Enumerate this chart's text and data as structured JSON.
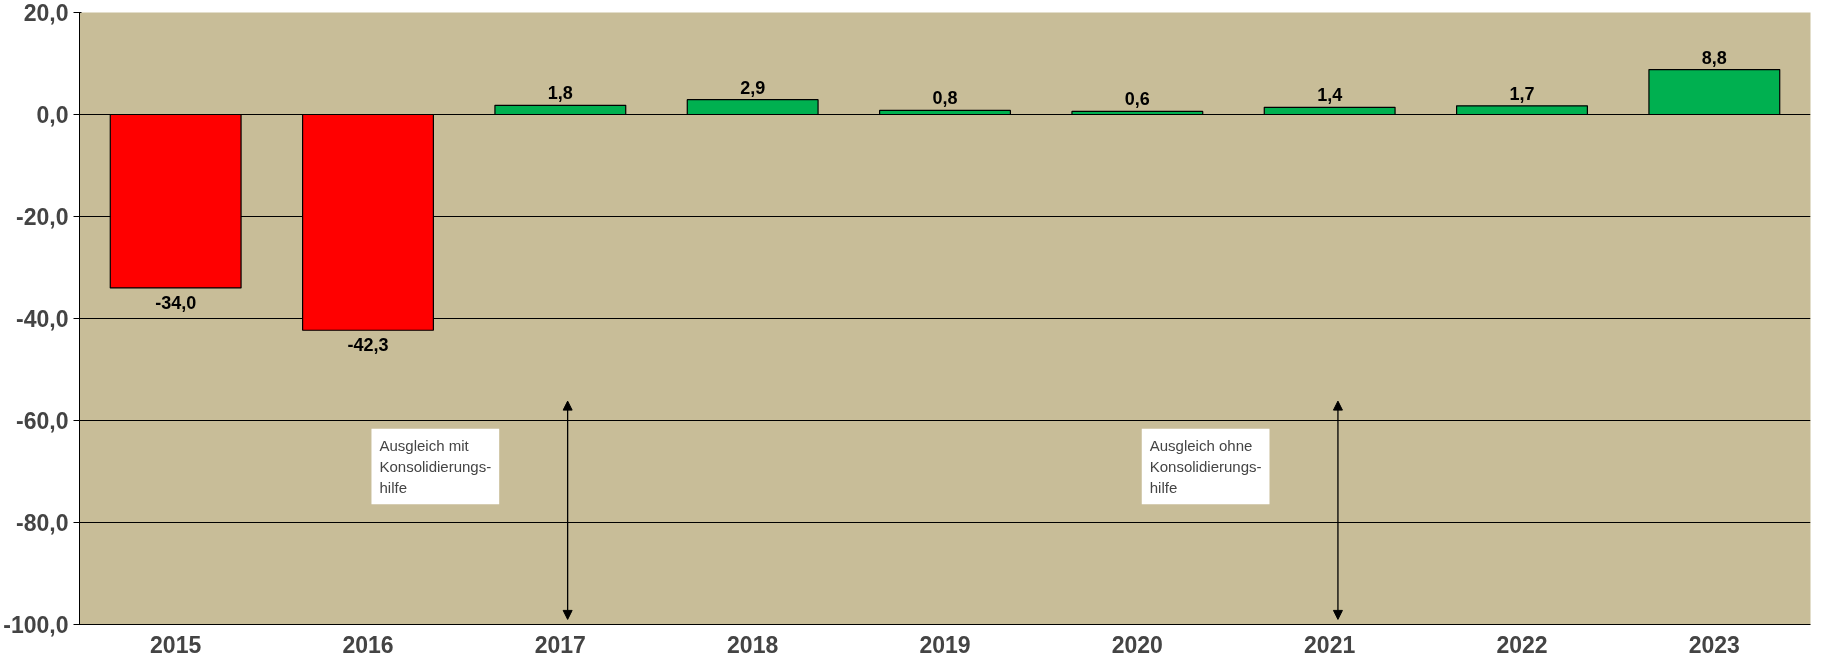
{
  "chart_data": {
    "type": "bar",
    "categories": [
      "2015",
      "2016",
      "2017",
      "2018",
      "2019",
      "2020",
      "2021",
      "2022",
      "2023"
    ],
    "values": [
      -34.0,
      -42.3,
      1.8,
      2.9,
      0.8,
      0.6,
      1.4,
      1.7,
      8.8
    ],
    "colors": [
      "#ff0000",
      "#ff0000",
      "#00b050",
      "#00b050",
      "#00b050",
      "#00b050",
      "#00b050",
      "#00b050",
      "#00b050"
    ],
    "value_labels": [
      "-34,0",
      "-42,3",
      "1,8",
      "2,9",
      "0,8",
      "0,6",
      "1,4",
      "1,7",
      "8,8"
    ],
    "ylim": [
      -100,
      20
    ],
    "yticks": [
      {
        "value": -100,
        "label": "-100,0"
      },
      {
        "value": -80,
        "label": "-80,0"
      },
      {
        "value": -60,
        "label": "-60,0"
      },
      {
        "value": -40,
        "label": "-40,0"
      },
      {
        "value": -20,
        "label": "-20,0"
      },
      {
        "value": 0,
        "label": "0,0"
      },
      {
        "value": 20,
        "label": "20,0"
      }
    ],
    "grid": "y",
    "annotations": [
      "Ausgleich mit\nKonsolidierungs-\nhilfe",
      "Ausgleich ohne\nKonsolidierungs-\nhilfe"
    ]
  }
}
